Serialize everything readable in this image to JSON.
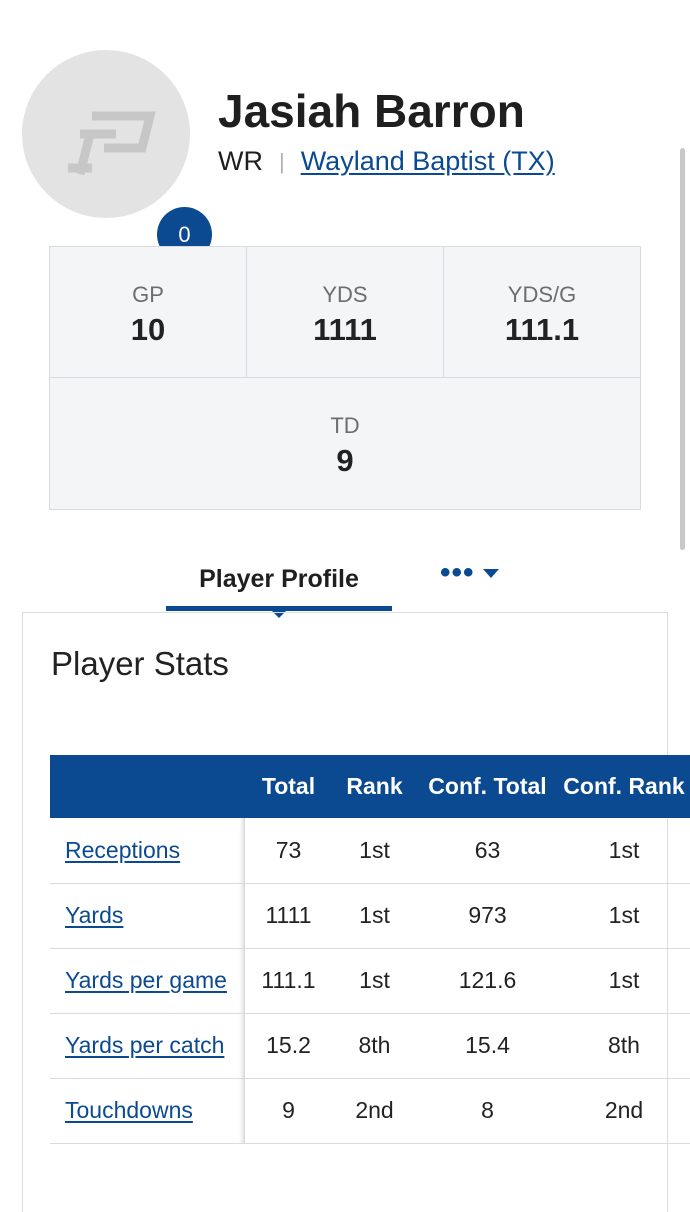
{
  "player": {
    "name": "Jasiah Barron",
    "position": "WR",
    "school": "Wayland Baptist (TX)",
    "jersey_number": "0"
  },
  "summary": [
    {
      "label": "GP",
      "value": "10"
    },
    {
      "label": "YDS",
      "value": "1111"
    },
    {
      "label": "YDS/G",
      "value": "111.1"
    },
    {
      "label": "TD",
      "value": "9"
    }
  ],
  "tabs": {
    "active": "Player Profile",
    "more": "•••"
  },
  "stats_panel": {
    "title": "Player Stats",
    "columns": [
      "",
      "Total",
      "Rank",
      "Conf. Total",
      "Conf. Rank"
    ],
    "rows": [
      {
        "stat": "Receptions",
        "total": "73",
        "rank": "1st",
        "conf_total": "63",
        "conf_rank": "1st"
      },
      {
        "stat": "Yards",
        "total": "1111",
        "rank": "1st",
        "conf_total": "973",
        "conf_rank": "1st"
      },
      {
        "stat": "Yards per game",
        "total": "111.1",
        "rank": "1st",
        "conf_total": "121.6",
        "conf_rank": "1st"
      },
      {
        "stat": "Yards per catch",
        "total": "15.2",
        "rank": "8th",
        "conf_total": "15.4",
        "conf_rank": "8th"
      },
      {
        "stat": "Touchdowns",
        "total": "9",
        "rank": "2nd",
        "conf_total": "8",
        "conf_rank": "2nd"
      }
    ]
  },
  "colors": {
    "brand_blue": "#0b4a91",
    "panel_bg": "#f4f5f7",
    "border": "#d9dbe0"
  }
}
